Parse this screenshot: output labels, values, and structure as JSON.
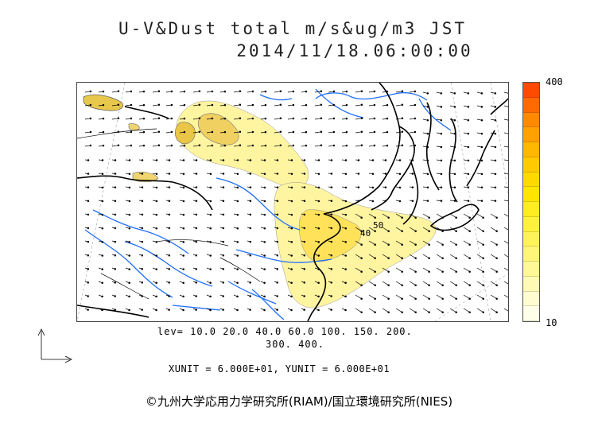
{
  "title": {
    "line1": "U-V&Dust total m/s&ug/m3 JST",
    "line2": "2014/11/18.06:00:00"
  },
  "colorbar": {
    "max_label": "400",
    "min_label": "10",
    "colors": [
      "#ff4a00",
      "#ff6a00",
      "#ff8a00",
      "#ffa200",
      "#ffb800",
      "#ffcb00",
      "#ffda00",
      "#ffe500",
      "#ffed20",
      "#fff23c",
      "#fff35a",
      "#fff578",
      "#fff896",
      "#fffab4",
      "#fffcd2",
      "#fffee8"
    ]
  },
  "contour_labels": [
    "40",
    "50"
  ],
  "levels": {
    "line1": "lev= 10.0 20.0 40.0 60.0 100. 150. 200.",
    "line2": "300. 400."
  },
  "units": {
    "text": "XUNIT = 6.000E+01, YUNIT = 6.000E+01"
  },
  "copyright": "©九州大学応用力学研究所(RIAM)/国立環境研究所(NIES)",
  "map_colors": {
    "dust_light": "#fff6b0",
    "dust_mid": "#ffe95a",
    "dust_high": "#e8c040",
    "rivers": "#1e6fff",
    "coast": "#000000"
  }
}
